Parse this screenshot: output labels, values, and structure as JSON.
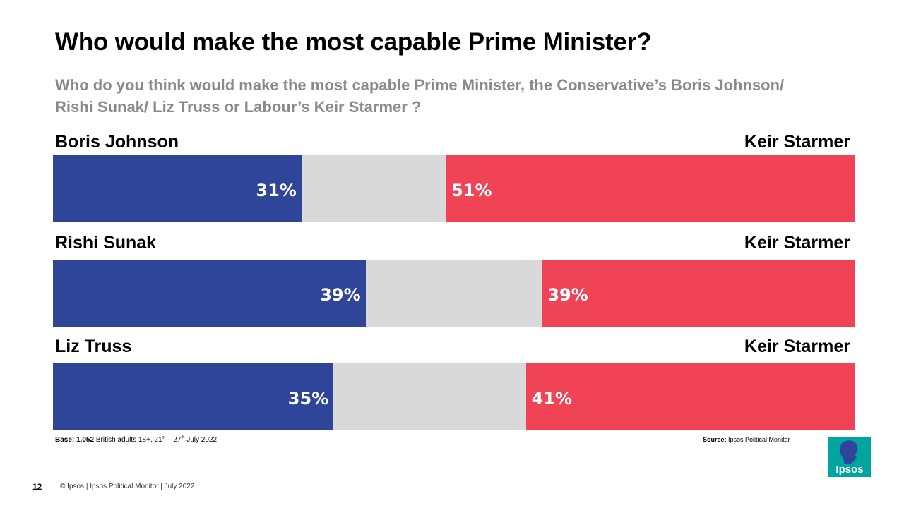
{
  "title": "Who would make the most capable Prime Minister?",
  "subtitle": "Who do you think would make the most capable Prime Minister, the Conservative’s Boris Johnson/ Rishi Sunak/ Liz Truss or Labour’s Keir Starmer ?",
  "colors": {
    "conservative": "#2e4599",
    "labour": "#f04355",
    "neutral": "#d9d9d9",
    "subtitle": "#8a8a8a",
    "logo_bg": "#00a5a0",
    "logo_fg": "#ffffff"
  },
  "chart_data": {
    "type": "bar",
    "orientation": "horizontal-stacked",
    "title": "Who would make the most capable Prime Minister?",
    "scale_max": 100,
    "rows": [
      {
        "left_name": "Boris Johnson",
        "left_value": 31,
        "left_label": "31%",
        "right_name": "Keir Starmer",
        "right_value": 51,
        "right_label": "51%"
      },
      {
        "left_name": "Rishi Sunak",
        "left_value": 39,
        "left_label": "39%",
        "right_name": "Keir Starmer",
        "right_value": 39,
        "right_label": "39%"
      },
      {
        "left_name": "Liz Truss",
        "left_value": 35,
        "left_label": "35%",
        "right_name": "Keir Starmer",
        "right_value": 41,
        "right_label": "41%"
      }
    ]
  },
  "base": {
    "label": "Base:",
    "count": "1,052",
    "text_before": "British adults 18+, 21",
    "sup1": "st",
    "text_mid": "– 27",
    "sup2": "th",
    "text_after": "July 2022"
  },
  "source": {
    "label": "Source:",
    "text": "Ipsos  Political Monitor"
  },
  "page_number": "12",
  "footer": "© Ipsos | Ipsos  Political Monitor | July 2022",
  "logo": {
    "text": "Ipsos",
    "icon": "ipsos-head-icon"
  }
}
